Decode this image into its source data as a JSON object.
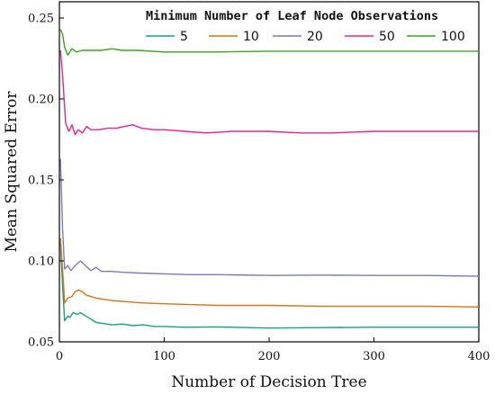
{
  "chart_data": {
    "type": "line",
    "title": "",
    "xlabel": "Number of Decision Tree",
    "ylabel": "Mean Squared Error",
    "xlim": [
      0,
      400
    ],
    "ylim": [
      0.05,
      0.26
    ],
    "x_ticks": [
      0,
      100,
      200,
      300,
      400
    ],
    "x_tick_labels": [
      "0",
      "100",
      "200",
      "300",
      "400"
    ],
    "y_ticks": [
      0.05,
      0.1,
      0.15,
      0.2,
      0.25
    ],
    "y_tick_labels": [
      "0.05",
      "0.10",
      "0.15",
      "0.20",
      "0.25"
    ],
    "grid": false,
    "legend": {
      "title": "Minimum Number of Leaf Node Observations",
      "placement": "top-right",
      "orientation": "horizontal"
    },
    "series": [
      {
        "name": "5",
        "color": "#1a9e7e",
        "points": [
          [
            1,
            0.111
          ],
          [
            3,
            0.085
          ],
          [
            5,
            0.063
          ],
          [
            8,
            0.066
          ],
          [
            10,
            0.065
          ],
          [
            13,
            0.068
          ],
          [
            17,
            0.067
          ],
          [
            20,
            0.068
          ],
          [
            25,
            0.066
          ],
          [
            30,
            0.064
          ],
          [
            35,
            0.062
          ],
          [
            40,
            0.0615
          ],
          [
            50,
            0.0605
          ],
          [
            60,
            0.061
          ],
          [
            70,
            0.06
          ],
          [
            80,
            0.0605
          ],
          [
            90,
            0.0595
          ],
          [
            100,
            0.0595
          ],
          [
            120,
            0.059
          ],
          [
            150,
            0.0592
          ],
          [
            200,
            0.0585
          ],
          [
            250,
            0.0588
          ],
          [
            300,
            0.059
          ],
          [
            350,
            0.059
          ],
          [
            400,
            0.059
          ]
        ]
      },
      {
        "name": "10",
        "color": "#d2761c",
        "points": [
          [
            1,
            0.114
          ],
          [
            3,
            0.095
          ],
          [
            5,
            0.074
          ],
          [
            8,
            0.077
          ],
          [
            12,
            0.078
          ],
          [
            15,
            0.081
          ],
          [
            18,
            0.082
          ],
          [
            22,
            0.081
          ],
          [
            25,
            0.079
          ],
          [
            30,
            0.078
          ],
          [
            35,
            0.077
          ],
          [
            40,
            0.0765
          ],
          [
            50,
            0.0755
          ],
          [
            60,
            0.075
          ],
          [
            70,
            0.0745
          ],
          [
            80,
            0.074
          ],
          [
            100,
            0.0735
          ],
          [
            125,
            0.073
          ],
          [
            150,
            0.0725
          ],
          [
            200,
            0.0725
          ],
          [
            250,
            0.072
          ],
          [
            300,
            0.072
          ],
          [
            350,
            0.072
          ],
          [
            400,
            0.0715
          ]
        ]
      },
      {
        "name": "20",
        "color": "#7e78b8",
        "points": [
          [
            1,
            0.163
          ],
          [
            3,
            0.12
          ],
          [
            5,
            0.095
          ],
          [
            8,
            0.097
          ],
          [
            11,
            0.094
          ],
          [
            15,
            0.097
          ],
          [
            20,
            0.1
          ],
          [
            25,
            0.097
          ],
          [
            30,
            0.094
          ],
          [
            35,
            0.096
          ],
          [
            40,
            0.0935
          ],
          [
            50,
            0.0935
          ],
          [
            60,
            0.093
          ],
          [
            75,
            0.0925
          ],
          [
            100,
            0.092
          ],
          [
            125,
            0.0915
          ],
          [
            150,
            0.0915
          ],
          [
            200,
            0.091
          ],
          [
            250,
            0.0912
          ],
          [
            300,
            0.091
          ],
          [
            350,
            0.091
          ],
          [
            400,
            0.0905
          ]
        ]
      },
      {
        "name": "50",
        "color": "#e6238d",
        "points": [
          [
            1,
            0.23
          ],
          [
            3,
            0.215
          ],
          [
            6,
            0.185
          ],
          [
            9,
            0.18
          ],
          [
            12,
            0.184
          ],
          [
            15,
            0.178
          ],
          [
            18,
            0.181
          ],
          [
            22,
            0.179
          ],
          [
            26,
            0.183
          ],
          [
            30,
            0.181
          ],
          [
            38,
            0.181
          ],
          [
            46,
            0.182
          ],
          [
            55,
            0.182
          ],
          [
            62,
            0.183
          ],
          [
            70,
            0.184
          ],
          [
            78,
            0.182
          ],
          [
            90,
            0.181
          ],
          [
            100,
            0.181
          ],
          [
            120,
            0.18
          ],
          [
            140,
            0.179
          ],
          [
            165,
            0.18
          ],
          [
            200,
            0.18
          ],
          [
            230,
            0.179
          ],
          [
            260,
            0.179
          ],
          [
            300,
            0.18
          ],
          [
            350,
            0.18
          ],
          [
            400,
            0.18
          ]
        ]
      },
      {
        "name": "100",
        "color": "#3aa51d",
        "points": [
          [
            1,
            0.243
          ],
          [
            3,
            0.24
          ],
          [
            5,
            0.232
          ],
          [
            8,
            0.227
          ],
          [
            12,
            0.231
          ],
          [
            16,
            0.229
          ],
          [
            22,
            0.23
          ],
          [
            30,
            0.23
          ],
          [
            40,
            0.23
          ],
          [
            50,
            0.231
          ],
          [
            60,
            0.23
          ],
          [
            75,
            0.23
          ],
          [
            100,
            0.229
          ],
          [
            150,
            0.229
          ],
          [
            200,
            0.2295
          ],
          [
            250,
            0.2295
          ],
          [
            300,
            0.2295
          ],
          [
            350,
            0.2295
          ],
          [
            400,
            0.2295
          ]
        ]
      }
    ]
  }
}
